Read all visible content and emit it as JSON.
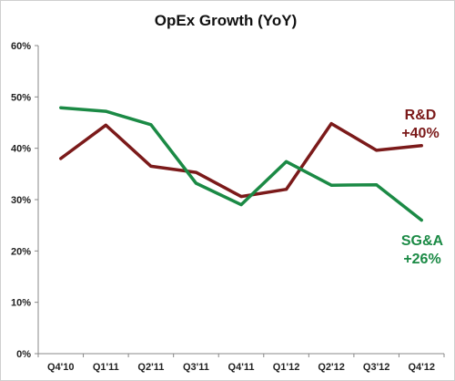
{
  "chart_data": {
    "type": "line",
    "title": "OpEx Growth (YoY)",
    "categories": [
      "Q4'10",
      "Q1'11",
      "Q2'11",
      "Q3'11",
      "Q4'11",
      "Q1'12",
      "Q2'12",
      "Q3'12",
      "Q4'12"
    ],
    "ylim": [
      0,
      60
    ],
    "yticks": [
      0,
      10,
      20,
      30,
      40,
      50,
      60
    ],
    "ytick_labels": [
      "0%",
      "10%",
      "20%",
      "30%",
      "40%",
      "50%",
      "60%"
    ],
    "grid": false,
    "series": [
      {
        "name": "R&D",
        "annotation": [
          "R&D",
          "+40%"
        ],
        "color": "#7b1a1a",
        "values": [
          38.0,
          44.5,
          36.5,
          35.3,
          30.6,
          32.0,
          44.8,
          39.6,
          40.5
        ]
      },
      {
        "name": "SG&A",
        "annotation": [
          "SG&A",
          "+26%"
        ],
        "color": "#1b8a45",
        "values": [
          47.9,
          47.2,
          44.6,
          33.2,
          29.0,
          37.4,
          32.8,
          32.9,
          26.0
        ]
      }
    ]
  }
}
